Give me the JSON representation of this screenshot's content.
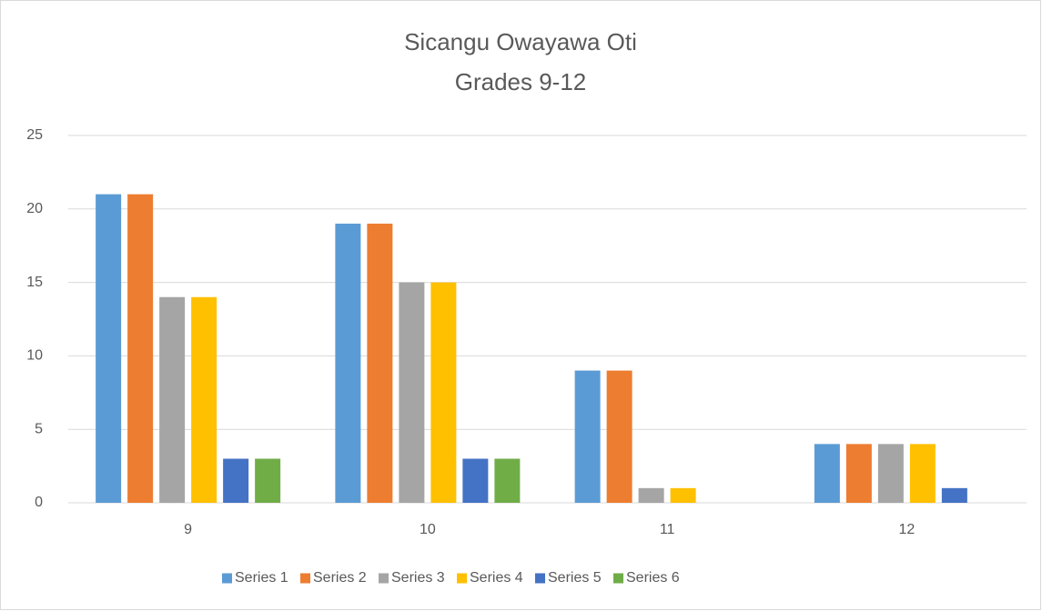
{
  "chart_data": {
    "type": "bar",
    "title": "Sicangu Owayawa Oti",
    "subtitle": "Grades 9-12",
    "categories": [
      "9",
      "10",
      "11",
      "12"
    ],
    "series": [
      {
        "name": "Series 1",
        "color": "#5b9bd5",
        "values": [
          21,
          19,
          9,
          4
        ]
      },
      {
        "name": "Series 2",
        "color": "#ed7d31",
        "values": [
          21,
          19,
          9,
          4
        ]
      },
      {
        "name": "Series 3",
        "color": "#a5a5a5",
        "values": [
          14,
          15,
          1,
          4
        ]
      },
      {
        "name": "Series 4",
        "color": "#ffc000",
        "values": [
          14,
          15,
          1,
          4
        ]
      },
      {
        "name": "Series 5",
        "color": "#4472c4",
        "values": [
          3,
          3,
          0,
          1
        ]
      },
      {
        "name": "Series 6",
        "color": "#70ad47",
        "values": [
          3,
          3,
          0,
          0
        ]
      }
    ],
    "ylim": [
      0,
      25
    ],
    "yticks": [
      0,
      5,
      10,
      15,
      20,
      25
    ],
    "grid": true,
    "legend": "bottom"
  }
}
